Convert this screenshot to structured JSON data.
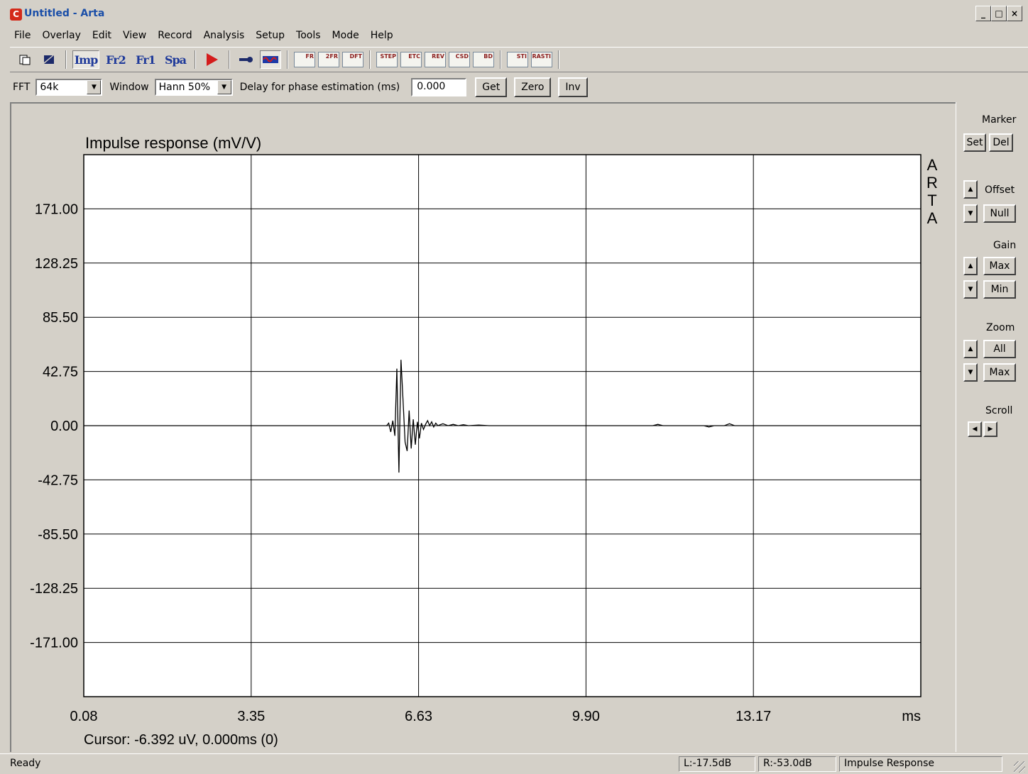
{
  "window": {
    "title": "Untitled - Arta",
    "minimize_glyph": "_",
    "maximize_glyph": "□",
    "close_glyph": "×"
  },
  "menu": [
    "File",
    "Overlay",
    "Edit",
    "View",
    "Record",
    "Analysis",
    "Setup",
    "Tools",
    "Mode",
    "Help"
  ],
  "toolbar": {
    "imp": "Imp",
    "fr2": "Fr2",
    "fr1": "Fr1",
    "spa": "Spa",
    "icons": [
      "FR",
      "2FR",
      "DFT",
      "STEP",
      "ETC",
      "REV",
      "CSD",
      "BD",
      "STI",
      "RASTI"
    ]
  },
  "fftbar": {
    "fft_label": "FFT",
    "fft_value": "64k",
    "window_label": "Window",
    "window_value": "Hann 50%",
    "delay_label": "Delay for phase estimation (ms)",
    "delay_value": "0.000",
    "get": "Get",
    "zero": "Zero",
    "inv": "Inv"
  },
  "right_panel": {
    "marker": "Marker",
    "set": "Set",
    "del": "Del",
    "offset": "Offset",
    "null": "Null",
    "gain": "Gain",
    "gain_max": "Max",
    "gain_min": "Min",
    "zoom": "Zoom",
    "zoom_all": "All",
    "zoom_max": "Max",
    "scroll": "Scroll"
  },
  "chart_data": {
    "type": "line",
    "title": "Impulse response (mV/V)",
    "xlabel": "ms",
    "ylabel": "",
    "watermark": "ARTA",
    "x_ticks": [
      "0.08",
      "3.35",
      "6.63",
      "9.90",
      "13.17"
    ],
    "y_ticks": [
      "171.00",
      "128.25",
      "85.50",
      "42.75",
      "0.00",
      "-42.75",
      "-85.50",
      "-128.25",
      "-171.00"
    ],
    "xlim": [
      0.08,
      16.44
    ],
    "ylim": [
      -213.75,
      213.75
    ],
    "grid": true,
    "cursor_text": "Cursor: -6.392 uV, 0.000ms (0)",
    "series": [
      {
        "points": [
          [
            0.08,
            0
          ],
          [
            6.0,
            0
          ],
          [
            6.04,
            2
          ],
          [
            6.08,
            -5
          ],
          [
            6.12,
            4
          ],
          [
            6.16,
            -8
          ],
          [
            6.2,
            45
          ],
          [
            6.24,
            -37
          ],
          [
            6.28,
            52
          ],
          [
            6.32,
            20
          ],
          [
            6.36,
            -13
          ],
          [
            6.4,
            -20
          ],
          [
            6.44,
            12
          ],
          [
            6.48,
            -18
          ],
          [
            6.52,
            5
          ],
          [
            6.56,
            -15
          ],
          [
            6.6,
            3
          ],
          [
            6.64,
            -10
          ],
          [
            6.68,
            2
          ],
          [
            6.72,
            -3
          ],
          [
            6.76,
            1
          ],
          [
            6.8,
            4
          ],
          [
            6.84,
            0
          ],
          [
            6.88,
            3
          ],
          [
            6.92,
            -1
          ],
          [
            6.96,
            2
          ],
          [
            7.0,
            0
          ],
          [
            7.1,
            1.5
          ],
          [
            7.2,
            0
          ],
          [
            7.3,
            1
          ],
          [
            7.4,
            0
          ],
          [
            7.5,
            0.8
          ],
          [
            7.6,
            0
          ],
          [
            7.8,
            0.5
          ],
          [
            8.0,
            0
          ],
          [
            11.2,
            0
          ],
          [
            11.3,
            1
          ],
          [
            11.4,
            0
          ],
          [
            12.2,
            0
          ],
          [
            12.3,
            -1
          ],
          [
            12.4,
            0
          ],
          [
            12.6,
            0
          ],
          [
            12.7,
            1.5
          ],
          [
            12.8,
            0
          ],
          [
            16.44,
            0
          ]
        ]
      }
    ]
  },
  "status": {
    "ready": "Ready",
    "left": "L:-17.5dB",
    "right": "R:-53.0dB",
    "mode": "Impulse Response"
  }
}
